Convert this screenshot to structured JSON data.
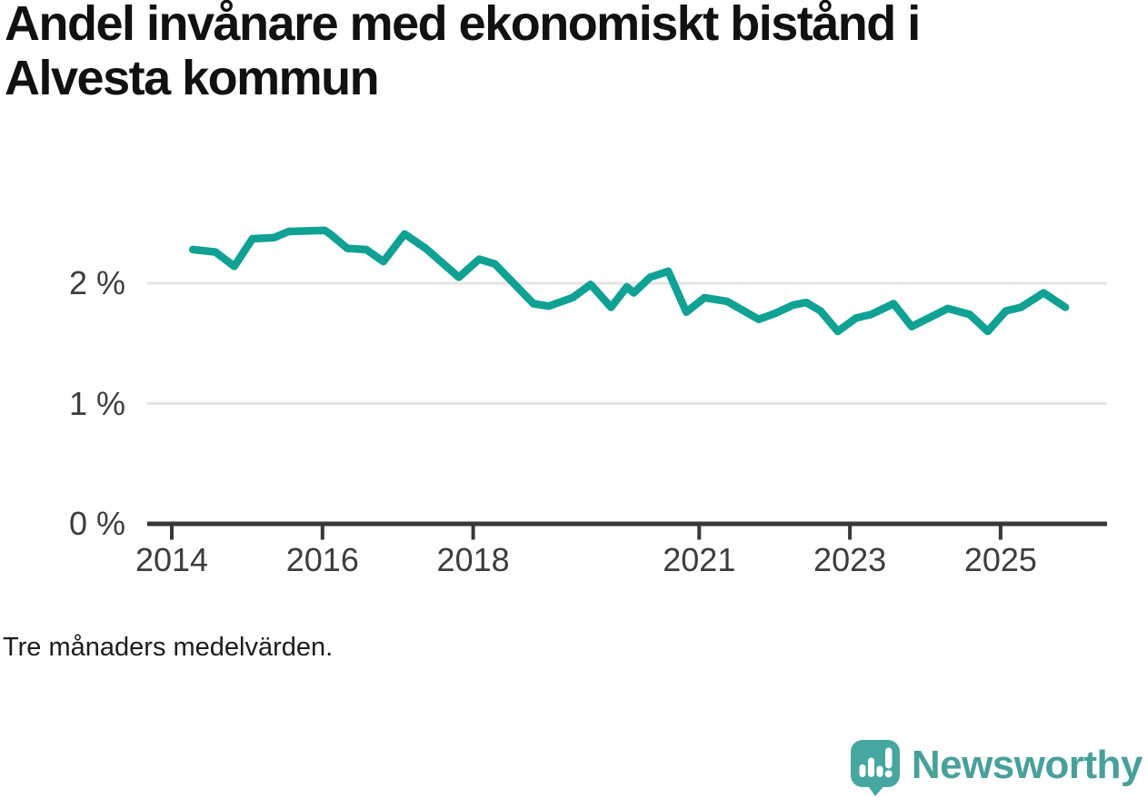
{
  "chart_data": {
    "type": "line",
    "title": "Andel invånare med ekonomiskt bistånd i Alvesta kommun",
    "note": "Tre månaders medelvärden.",
    "unit": "%",
    "grid": "horizontal",
    "legend": "none",
    "xlim": [
      2013.7,
      2026.4
    ],
    "ylim": [
      0,
      2.55
    ],
    "x_ticks": [
      {
        "v": 2014,
        "label": "2014"
      },
      {
        "v": 2016,
        "label": "2016"
      },
      {
        "v": 2018,
        "label": "2018"
      },
      {
        "v": 2021,
        "label": "2021"
      },
      {
        "v": 2023,
        "label": "2023"
      },
      {
        "v": 2025,
        "label": "2025"
      }
    ],
    "y_ticks": [
      {
        "v": 0,
        "label": "0 %"
      },
      {
        "v": 1,
        "label": "1 %"
      },
      {
        "v": 2,
        "label": "2 %"
      }
    ],
    "colors": {
      "line": "#0fa294",
      "grid": "#e4e4e4",
      "axis": "#383838"
    },
    "series": [
      {
        "name": "Andel invånare med ekonomiskt bistånd",
        "color": "#0fa294",
        "points": [
          [
            2014.28,
            2.28
          ],
          [
            2014.58,
            2.26
          ],
          [
            2014.83,
            2.14
          ],
          [
            2015.07,
            2.37
          ],
          [
            2015.36,
            2.38
          ],
          [
            2015.55,
            2.43
          ],
          [
            2016.03,
            2.44
          ],
          [
            2016.1,
            2.41
          ],
          [
            2016.33,
            2.29
          ],
          [
            2016.58,
            2.28
          ],
          [
            2016.81,
            2.18
          ],
          [
            2017.09,
            2.41
          ],
          [
            2017.37,
            2.29
          ],
          [
            2017.81,
            2.05
          ],
          [
            2018.08,
            2.2
          ],
          [
            2018.29,
            2.16
          ],
          [
            2018.8,
            1.83
          ],
          [
            2019.0,
            1.81
          ],
          [
            2019.32,
            1.88
          ],
          [
            2019.56,
            1.99
          ],
          [
            2019.83,
            1.8
          ],
          [
            2020.04,
            1.97
          ],
          [
            2020.13,
            1.92
          ],
          [
            2020.35,
            2.05
          ],
          [
            2020.59,
            2.1
          ],
          [
            2020.83,
            1.76
          ],
          [
            2021.07,
            1.88
          ],
          [
            2021.37,
            1.85
          ],
          [
            2021.79,
            1.7
          ],
          [
            2022.01,
            1.75
          ],
          [
            2022.25,
            1.82
          ],
          [
            2022.42,
            1.84
          ],
          [
            2022.61,
            1.77
          ],
          [
            2022.84,
            1.6
          ],
          [
            2023.08,
            1.71
          ],
          [
            2023.28,
            1.74
          ],
          [
            2023.58,
            1.83
          ],
          [
            2023.82,
            1.64
          ],
          [
            2024.3,
            1.79
          ],
          [
            2024.59,
            1.74
          ],
          [
            2024.83,
            1.6
          ],
          [
            2025.07,
            1.77
          ],
          [
            2025.27,
            1.8
          ],
          [
            2025.57,
            1.92
          ],
          [
            2025.86,
            1.8
          ]
        ]
      }
    ]
  },
  "branding": {
    "wordmark": "Newsworthy"
  }
}
